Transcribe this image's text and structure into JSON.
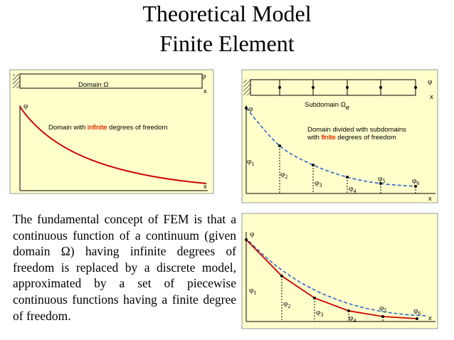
{
  "title": [
    "Theoretical Model",
    "Finite Element"
  ],
  "panel_infinite": {
    "domain_label": "Domain Ω",
    "phi_top": "φ",
    "x_top": "x",
    "phi_axis": "φ",
    "x_axis": "x",
    "caption": {
      "before": "Domain with ",
      "highlight": "infinite",
      "after": " degrees of freedom"
    }
  },
  "panel_finite": {
    "phi_top": "φ",
    "x_top": "x",
    "subdomain": {
      "text": "Subdomain Ω",
      "subscript": "e"
    },
    "phi_axis": "φ",
    "x_axis": "x",
    "caption_line1": "Domain divided with subdomains",
    "caption_line2": {
      "before": "with ",
      "highlight": "finite",
      "after": " degrees of freedom"
    },
    "nodal_values": [
      {
        "symbol": "φ",
        "index": "1"
      },
      {
        "symbol": "φ",
        "index": "2"
      },
      {
        "symbol": "φ",
        "index": "3"
      },
      {
        "symbol": "φ",
        "index": "4"
      },
      {
        "symbol": "φ",
        "index": "5"
      },
      {
        "symbol": "φ",
        "index": "6"
      }
    ]
  },
  "panel_approx": {
    "phi_axis": "φ",
    "x_axis": "x",
    "nodal_values": [
      {
        "symbol": "φ",
        "index": "1"
      },
      {
        "symbol": "φ",
        "index": "2"
      },
      {
        "symbol": "φ",
        "index": "3"
      },
      {
        "symbol": "φ",
        "index": "4"
      },
      {
        "symbol": "φ",
        "index": "5"
      },
      {
        "symbol": "φ",
        "index": "6"
      }
    ]
  },
  "paragraph": "The fundamental concept of FEM is that a continuous function of a continuum (given domain Ω) having infinite degrees of freedom is replaced by a discrete model, approximated by a set of piecewise continuous functions having a finite degree of freedom."
}
